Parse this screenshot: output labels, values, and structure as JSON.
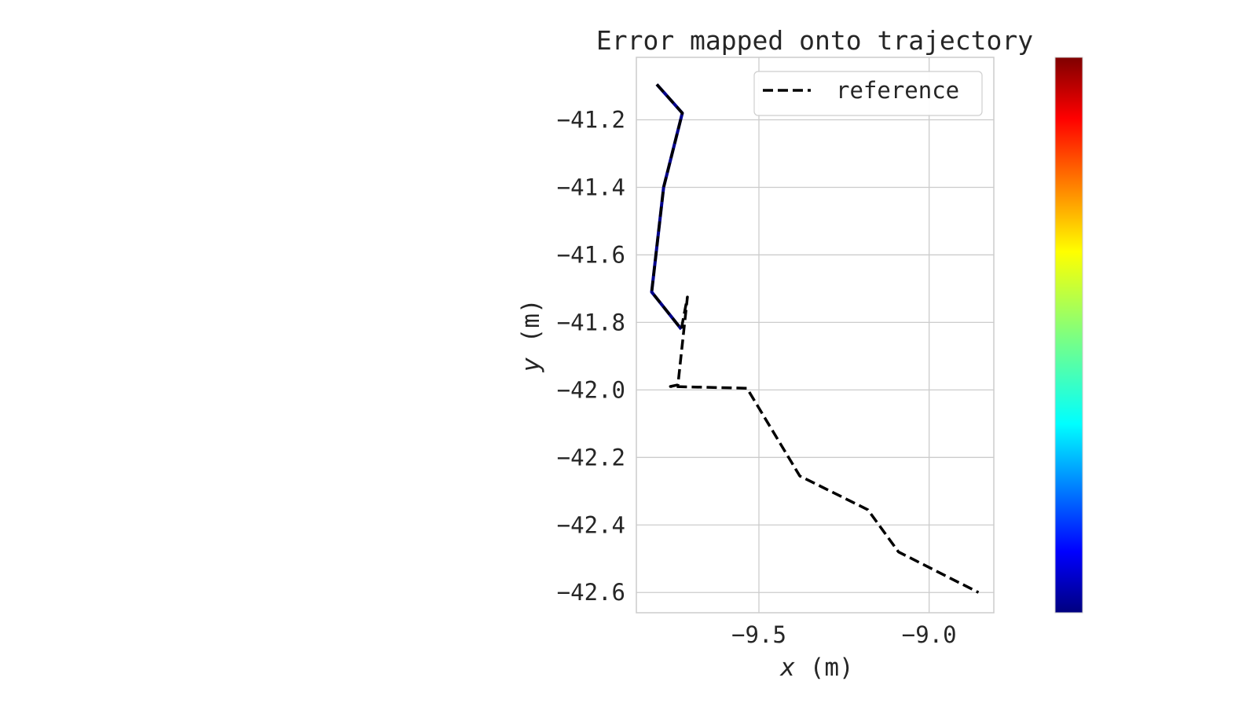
{
  "chart_data": {
    "type": "line",
    "title": "Error mapped onto trajectory",
    "xlabel_var": "x",
    "xlabel_unit": "(m)",
    "ylabel_var": "y",
    "ylabel_unit": "(m)",
    "xlim": [
      -9.86,
      -8.81
    ],
    "ylim": [
      -42.66,
      -41.015
    ],
    "x_ticks": [
      -9.5,
      -9.0
    ],
    "x_tick_labels": [
      "−9.5",
      "−9.0"
    ],
    "y_ticks": [
      -41.2,
      -41.4,
      -41.6,
      -41.8,
      -42.0,
      -42.2,
      -42.4,
      -42.6
    ],
    "y_tick_labels": [
      "−41.2",
      "−41.4",
      "−41.6",
      "−41.8",
      "−42.0",
      "−42.2",
      "−42.4",
      "−42.6"
    ],
    "grid": true,
    "legend": {
      "position": "top-right",
      "entries": [
        "reference"
      ]
    },
    "colorbar": {
      "colormap": "jet",
      "position": "right",
      "tick_labels": []
    },
    "series": [
      {
        "name": "reference",
        "style": "dashed",
        "color": "#000000",
        "x": [
          -9.8,
          -9.725,
          -9.78,
          -9.815,
          -9.728,
          -9.71,
          -9.738,
          -9.76,
          -9.535,
          -9.38,
          -9.18,
          -9.09,
          -8.855
        ],
        "y": [
          -41.095,
          -41.18,
          -41.4,
          -41.71,
          -41.82,
          -41.725,
          -41.985,
          -41.99,
          -41.995,
          -42.255,
          -42.355,
          -42.48,
          -42.6
        ]
      },
      {
        "name": "",
        "style": "solid",
        "color": "#00008b",
        "x": [
          -9.8,
          -9.725,
          -9.78,
          -9.815,
          -9.728
        ],
        "y": [
          -41.095,
          -41.18,
          -41.4,
          -41.71,
          -41.82
        ]
      }
    ]
  }
}
